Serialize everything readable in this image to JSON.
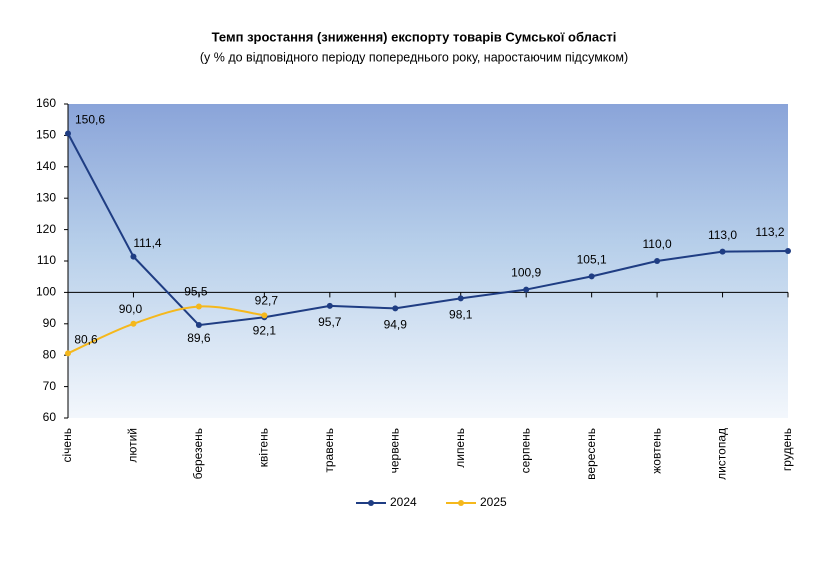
{
  "chart_data": {
    "type": "line",
    "title": "Темп зростання (зниження) експорту товарів Сумської області",
    "subtitle": "(у % до відповідного періоду попереднього року, наростаючим підсумком)",
    "categories": [
      "січень",
      "лютий",
      "березень",
      "квітень",
      "травень",
      "червень",
      "липень",
      "серпень",
      "вересень",
      "жовтень",
      "листопад",
      "грудень"
    ],
    "series": [
      {
        "name": "2024",
        "color": "#1f3d83",
        "smooth": false,
        "values": [
          150.6,
          111.4,
          89.6,
          92.1,
          95.7,
          94.9,
          98.1,
          100.9,
          105.1,
          110.0,
          113.0,
          113.2
        ],
        "value_labels": [
          "150,6",
          "111,4",
          "89,6",
          "92,1",
          "95,7",
          "94,9",
          "98,1",
          "100,9",
          "105,1",
          "110,0",
          "113,0",
          "113,2"
        ]
      },
      {
        "name": "2025",
        "color": "#f5b81c",
        "smooth": true,
        "values": [
          80.6,
          90.0,
          95.5,
          92.7,
          null,
          null,
          null,
          null,
          null,
          null,
          null,
          null
        ],
        "value_labels": [
          "80,6",
          "90,0",
          "95,5",
          "92,7",
          null,
          null,
          null,
          null,
          null,
          null,
          null,
          null
        ]
      }
    ],
    "ylim": [
      60,
      160
    ],
    "yticks": [
      60,
      70,
      80,
      90,
      100,
      110,
      120,
      130,
      140,
      150,
      160
    ],
    "xaxis_cross": 100,
    "legend": "bottom"
  }
}
